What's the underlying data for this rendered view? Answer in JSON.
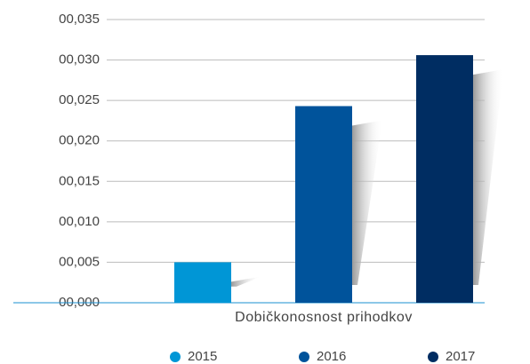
{
  "chart_data": {
    "type": "bar",
    "categories": [
      "Dobičkonosnost prihodkov"
    ],
    "series": [
      {
        "name": "2015",
        "color": "#0096d6",
        "values": [
          0.005
        ]
      },
      {
        "name": "2016",
        "color": "#00539b",
        "values": [
          0.0243
        ]
      },
      {
        "name": "2017",
        "color": "#002d62",
        "values": [
          0.0306
        ]
      }
    ],
    "ylim": [
      0,
      0.035
    ],
    "yticks": [
      {
        "value": 0,
        "label": "00,000"
      },
      {
        "value": 0.005,
        "label": "00,005"
      },
      {
        "value": 0.01,
        "label": "00,010"
      },
      {
        "value": 0.015,
        "label": "00,015"
      },
      {
        "value": 0.02,
        "label": "00,020"
      },
      {
        "value": 0.025,
        "label": "00,025"
      },
      {
        "value": 0.03,
        "label": "00,030"
      },
      {
        "value": 0.035,
        "label": "00,035"
      }
    ],
    "grid": true,
    "legend": "bottom"
  }
}
